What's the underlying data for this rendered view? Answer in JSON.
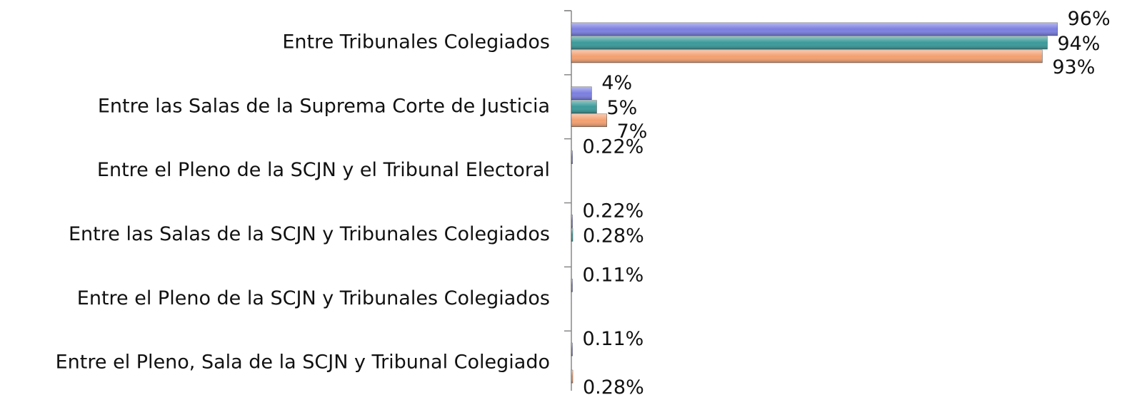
{
  "chart_data": {
    "type": "barh",
    "categories": [
      "Entre Tribunales Colegiados",
      "Entre las Salas de la Suprema Corte de Justicia",
      "Entre el Pleno de la SCJN y el Tribunal Electoral",
      "Entre las Salas de la SCJN y Tribunales Colegiados",
      "Entre el Pleno de la SCJN y Tribunales Colegiados",
      "Entre el Pleno, Sala de la SCJN y Tribunal Colegiado"
    ],
    "series": [
      {
        "color": "#7b7fe0",
        "values": [
          96,
          4,
          0.22,
          0.22,
          0.11,
          0.11
        ],
        "value_labels": [
          "96%",
          "4%",
          "0.22%",
          "0.22%",
          "0.11%",
          "0.11%"
        ]
      },
      {
        "color": "#3a9a9a",
        "values": [
          94,
          5,
          null,
          0.28,
          null,
          null
        ],
        "value_labels": [
          "94%",
          "5%",
          null,
          "0.28%",
          null,
          null
        ]
      },
      {
        "color": "#f4a070",
        "values": [
          93,
          7,
          null,
          null,
          null,
          0.28
        ],
        "value_labels": [
          "93%",
          "7%",
          null,
          null,
          null,
          "0.28%"
        ]
      }
    ],
    "xlim": [
      0,
      100
    ]
  }
}
